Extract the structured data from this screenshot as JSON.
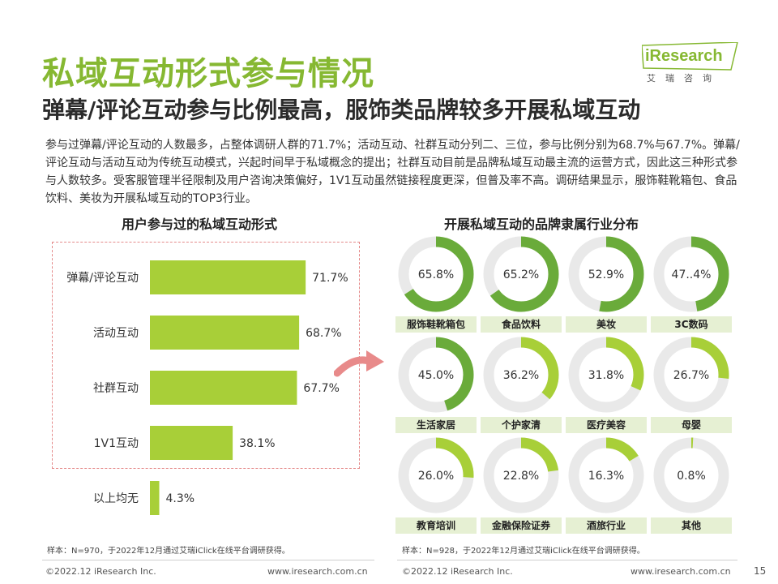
{
  "title": "私域互动形式参与情况",
  "subtitle": "弹幕/评论互动参与比例最高，服饰类品牌较多开展私域互动",
  "description": "参与过弹幕/评论互动的人数最多，占整体调研人群的71.7%；活动互动、社群互动分列二、三位，参与比例分别为68.7%与67.7%。弹幕/评论互动与活动互动为传统互动模式，兴起时间早于私域概念的提出；社群互动目前是品牌私域互动最主流的运营方式，因此这三种形式参与人数较多。受客服管理半径限制及用户咨询决策偏好，1V1互动虽然链接程度更深，但普及率不高。调研结果显示，服饰鞋靴箱包、食品饮料、美妆为开展私域互动的TOP3行业。",
  "logo": {
    "brand": "iResearch",
    "cn": "艾瑞咨询"
  },
  "colors": {
    "accent": "#86b832",
    "bar": "#a8cf38",
    "ring": "#6aab3a",
    "ring_light": "#a8cf38",
    "ring_bg": "#e9e9e9",
    "label_bg": "#e6f0d3",
    "dash": "#e58b8b",
    "arrow": "#e88a8a"
  },
  "chart_data": [
    {
      "type": "bar",
      "orientation": "horizontal",
      "title": "用户参与过的私域互动形式",
      "categories": [
        "弹幕/评论互动",
        "活动互动",
        "社群互动",
        "1V1互动",
        "以上均无"
      ],
      "values": [
        71.7,
        68.7,
        67.7,
        38.1,
        4.3
      ],
      "value_labels": [
        "71.7%",
        "68.7%",
        "67.7%",
        "38.1%",
        "4.3%"
      ],
      "xlim": [
        0,
        100
      ],
      "grid": false,
      "source": "样本：N=970，于2022年12月通过艾瑞iClick在线平台调研获得。"
    },
    {
      "type": "pie",
      "style": "donut-grid",
      "title": "开展私域互动的品牌隶属行业分布",
      "categories": [
        "服饰鞋靴箱包",
        "食品饮料",
        "美妆",
        "3C数码",
        "生活家居",
        "个护家清",
        "医疗美容",
        "母婴",
        "教育培训",
        "金融保险证券",
        "酒旅行业",
        "其他"
      ],
      "values": [
        65.8,
        65.2,
        52.9,
        47.4,
        45.0,
        36.2,
        31.8,
        26.7,
        26.0,
        22.8,
        16.3,
        0.8
      ],
      "value_labels": [
        "65.8%",
        "65.2%",
        "52.9%",
        "47..4%",
        "45.0%",
        "36.2%",
        "31.8%",
        "26.7%",
        "26.0%",
        "22.8%",
        "16.3%",
        "0.8%"
      ],
      "source": "样本：N=928，于2022年12月通过艾瑞iClick在线平台调研获得。"
    }
  ],
  "footer": {
    "left_copyright": "©2022.12 iResearch Inc.",
    "left_url": "www.iresearch.com.cn",
    "right_copyright": "©2022.12 iResearch Inc.",
    "right_url": "www.iresearch.com.cn",
    "page": "15"
  }
}
